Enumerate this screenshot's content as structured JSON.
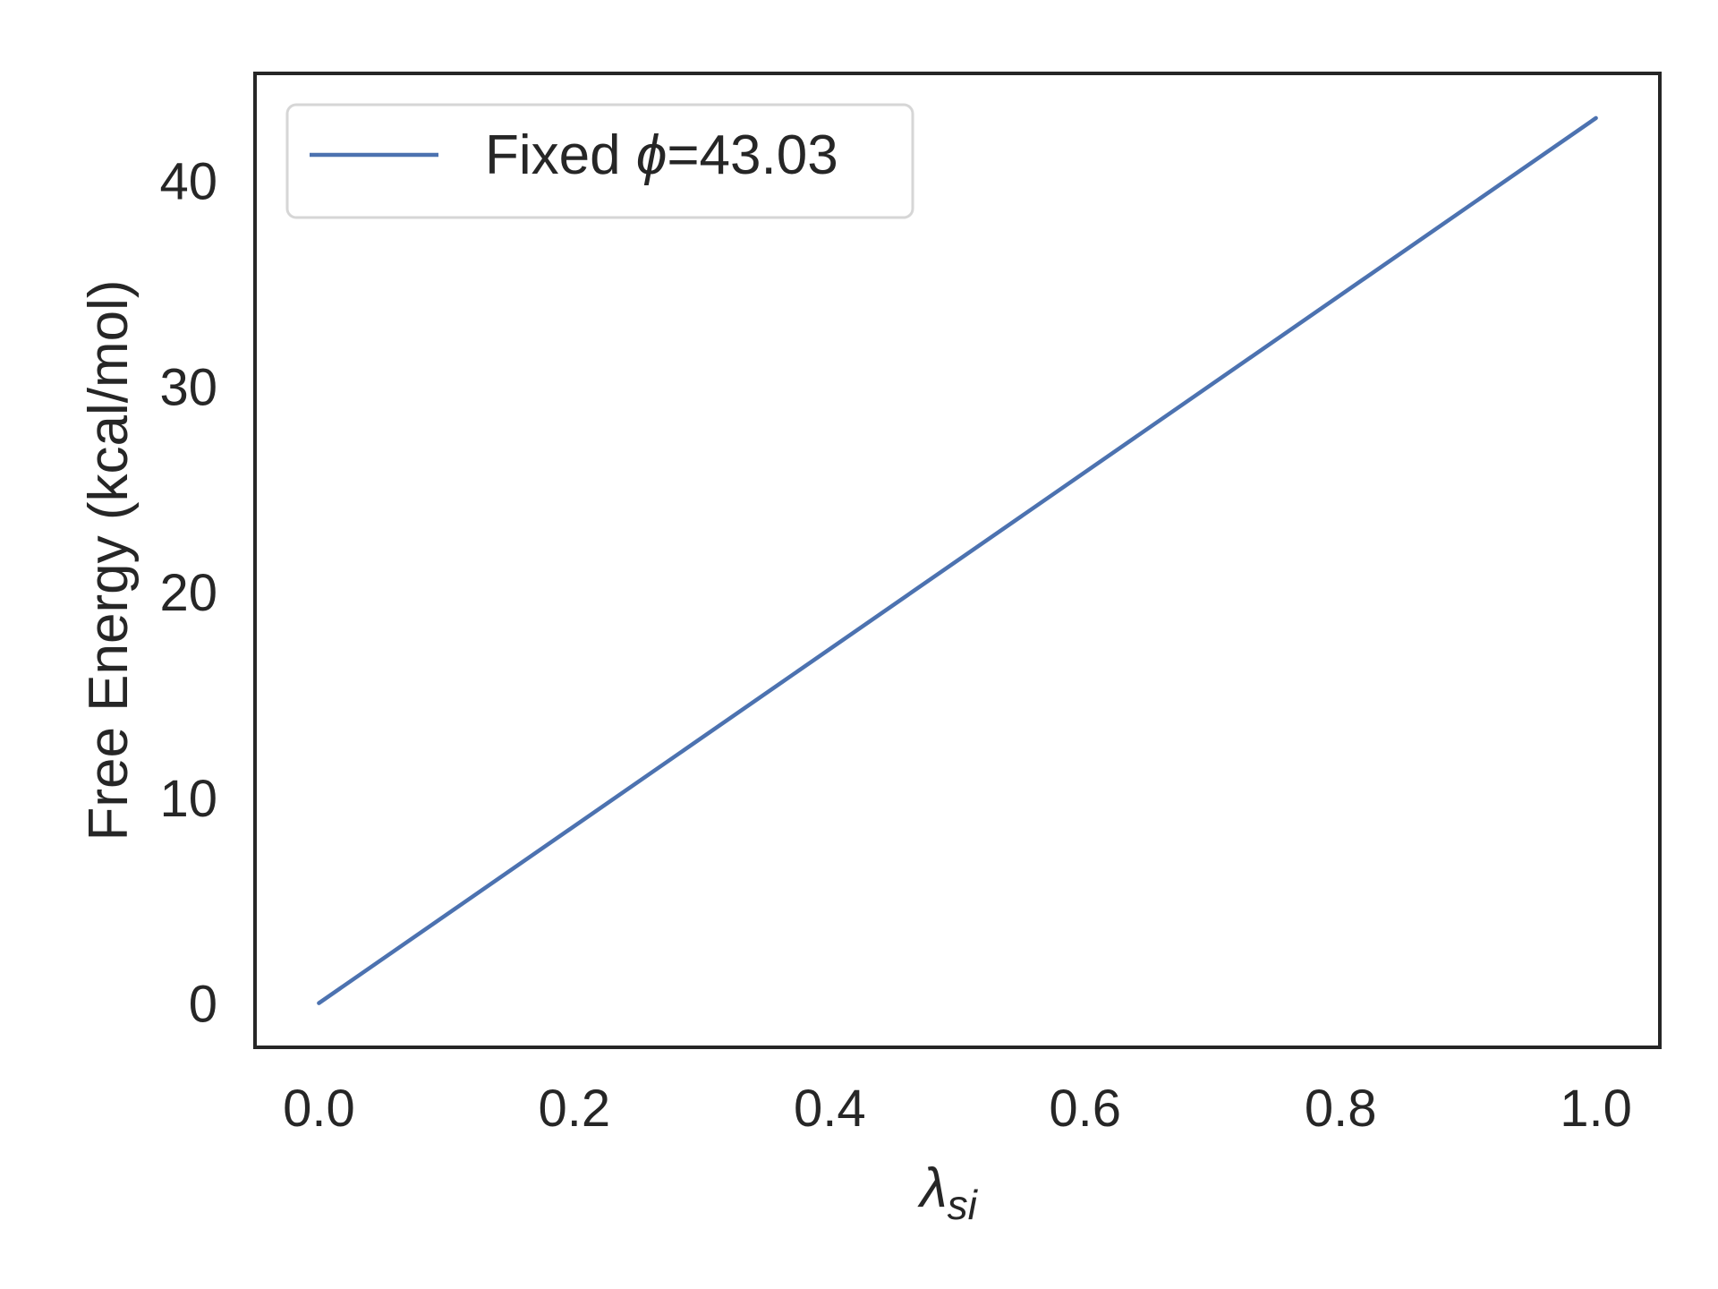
{
  "chart_data": {
    "type": "line",
    "xlabel_symbol": "λ",
    "xlabel_subscript": "si",
    "ylabel": "Free Energy (kcal/mol)",
    "xlim": [
      -0.05,
      1.05
    ],
    "ylim": [
      -2.15,
      45.2
    ],
    "x_ticks": [
      0.0,
      0.2,
      0.4,
      0.6,
      0.8,
      1.0
    ],
    "x_tick_labels": [
      "0.0",
      "0.2",
      "0.4",
      "0.6",
      "0.8",
      "1.0"
    ],
    "y_ticks": [
      0,
      10,
      20,
      30,
      40
    ],
    "y_tick_labels": [
      "0",
      "10",
      "20",
      "30",
      "40"
    ],
    "grid": false,
    "legend_position": "upper-left",
    "series": [
      {
        "name_prefix": "Fixed ",
        "name_symbol": "ϕ",
        "name_suffix": "=43.03",
        "color": "#4c72b0",
        "x": [
          0.0,
          1.0
        ],
        "y": [
          0.0,
          43.03
        ]
      }
    ]
  }
}
